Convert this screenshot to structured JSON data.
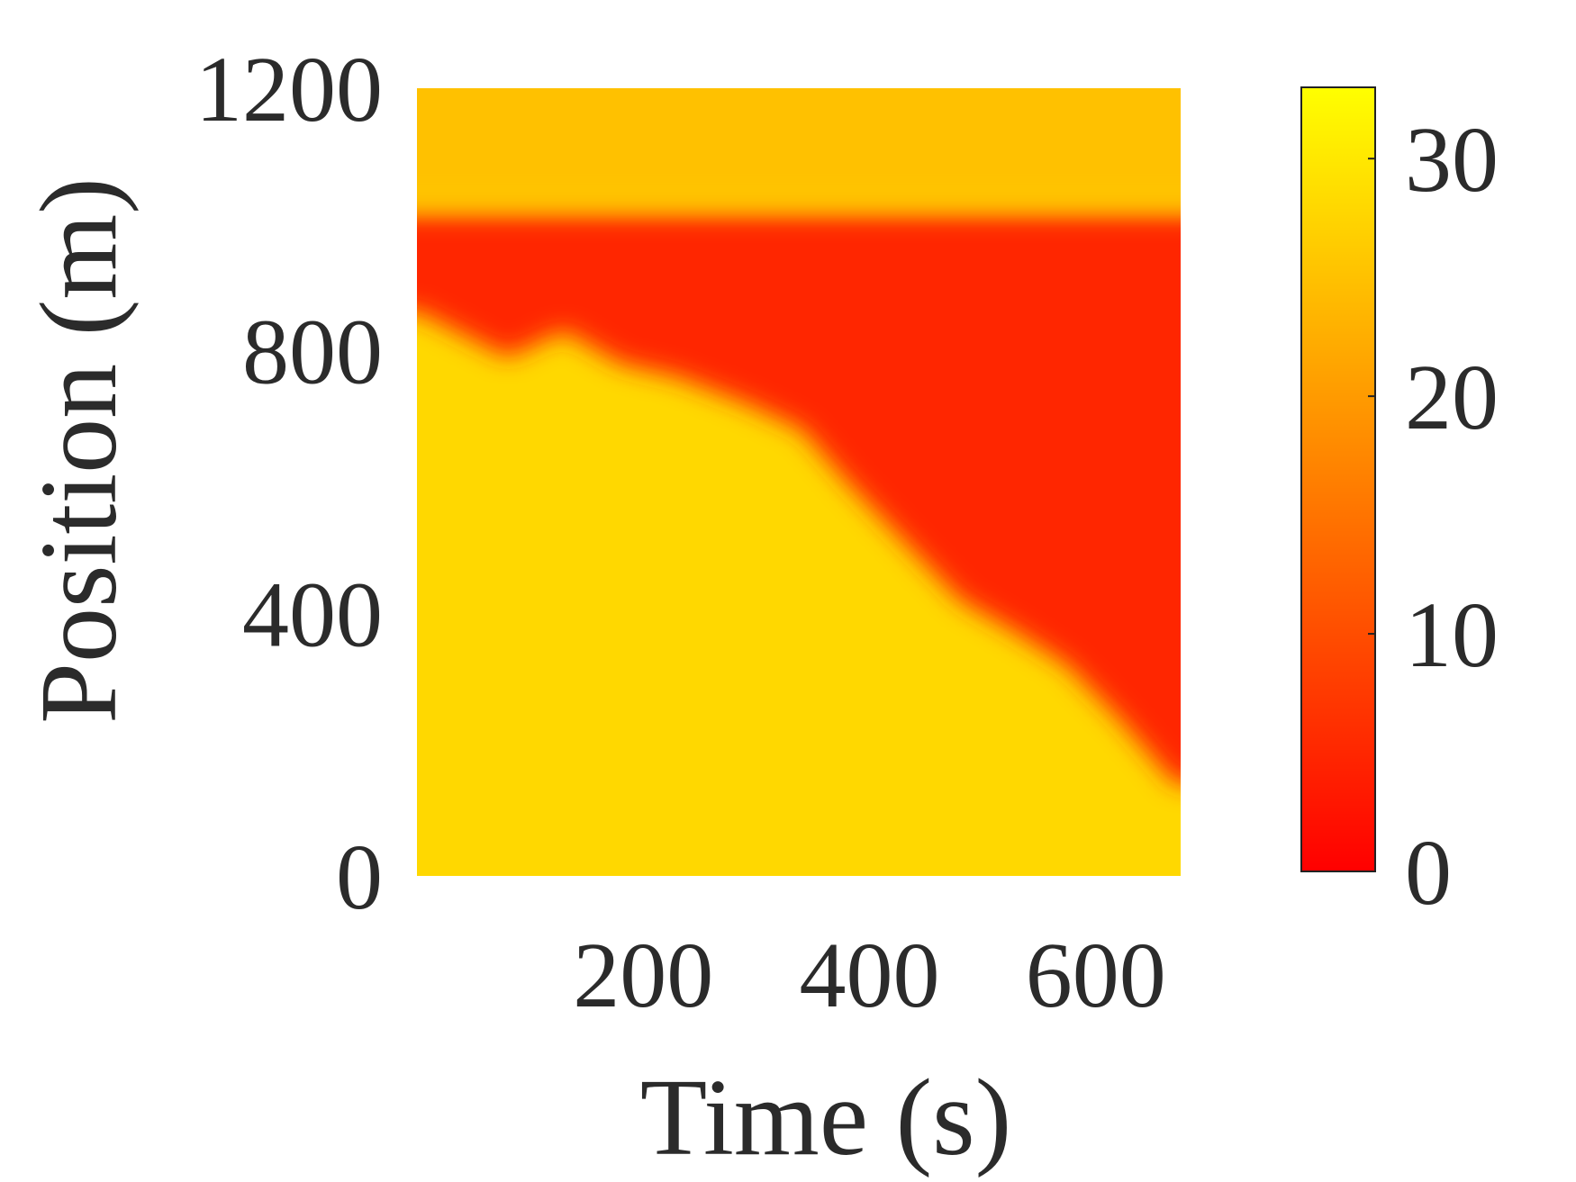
{
  "chart_data": {
    "type": "heatmap",
    "title": "",
    "xlabel": "Time (s)",
    "ylabel": "Position (m)",
    "xlim": [
      0,
      675
    ],
    "ylim": [
      0,
      1200
    ],
    "xticks": [
      200,
      400,
      600
    ],
    "yticks": [
      0,
      400,
      800,
      1200
    ],
    "grid": false,
    "colorbar": {
      "range": [
        0,
        33
      ],
      "ticks": [
        0,
        10,
        20,
        30
      ],
      "colormap": "autumn",
      "low_color": "#ff0000",
      "high_color": "#ffff00"
    },
    "field_description_values": {
      "congested_speed": 5,
      "free_flow_speed": 28,
      "downstream_speed": 25
    },
    "congestion_boundary": {
      "x": [
        0,
        80,
        130,
        180,
        230,
        290,
        340,
        380,
        430,
        480,
        530,
        575,
        620,
        670
      ],
      "lower_y": [
        860,
        790,
        830,
        780,
        760,
        720,
        680,
        600,
        510,
        420,
        370,
        320,
        240,
        140
      ],
      "upper_y": [
        1010,
        1010,
        1010,
        1010,
        1010,
        1010,
        1010,
        1010,
        1010,
        1010,
        1010,
        1010,
        1010,
        1010
      ]
    }
  }
}
